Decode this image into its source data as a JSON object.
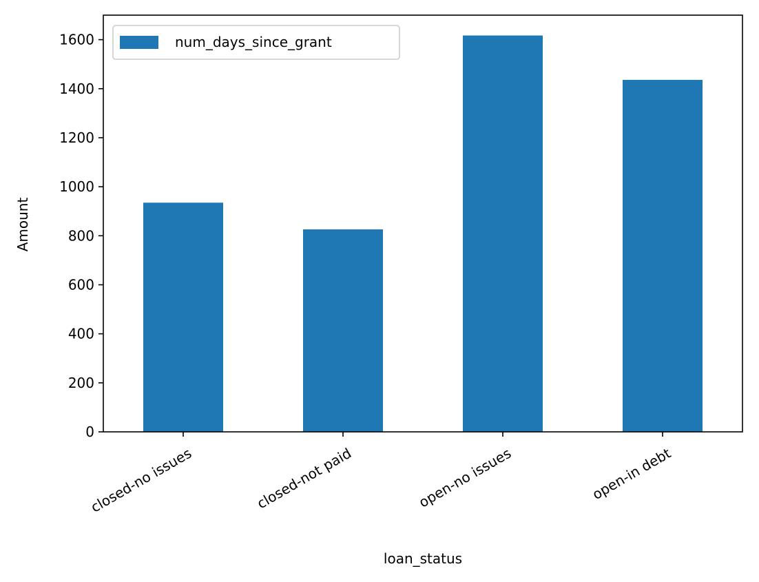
{
  "chart_data": {
    "type": "bar",
    "title": "",
    "xlabel": "loan_status",
    "ylabel": "Amount",
    "categories": [
      "closed-no issues",
      "closed-not paid",
      "open-no issues",
      "open-in debt"
    ],
    "series": [
      {
        "name": "num_days_since_grant",
        "values": [
          935,
          826,
          1617,
          1436
        ],
        "color": "#1f77b4"
      }
    ],
    "ylim": [
      0,
      1700
    ],
    "yticks": [
      0,
      200,
      400,
      600,
      800,
      1000,
      1200,
      1400,
      1600
    ],
    "x_tick_rotation_deg": -30,
    "grid": false,
    "legend_position": "upper-left"
  }
}
